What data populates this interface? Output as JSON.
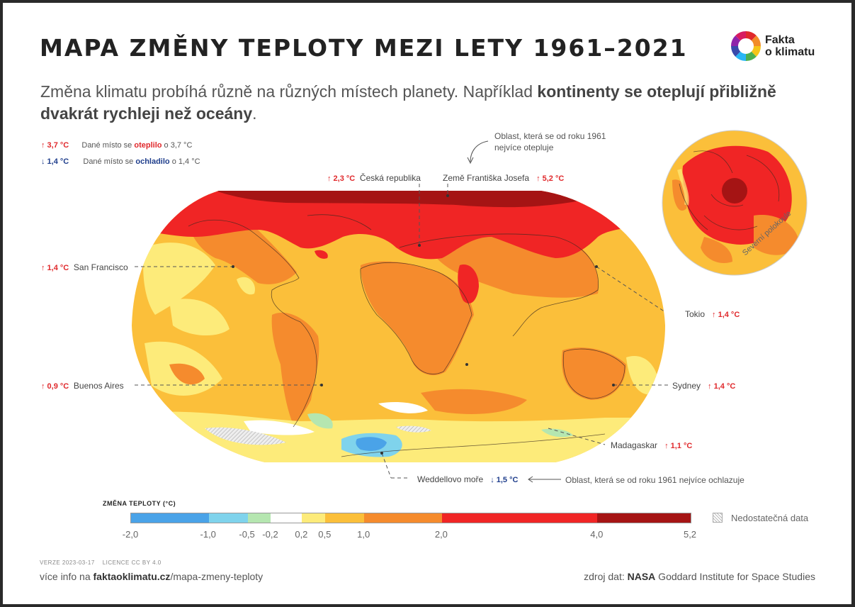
{
  "title": "MAPA ZMĚNY TEPLOTY MEZI LETY 1961–2021",
  "logo": {
    "line1": "Fakta",
    "line2": "o klimatu",
    "colors": [
      "#e0282b",
      "#f28c28",
      "#f5c518",
      "#4caf50",
      "#29b6f6",
      "#3949ab",
      "#8e24aa",
      "#d81b60"
    ]
  },
  "subtitle": {
    "part1": "Změna klimatu probíhá různě na různých místech planety. Například ",
    "bold": "kontinenty se oteplují přibližně dvakrát rychleji než oceány",
    "part2": "."
  },
  "legend": {
    "warm": {
      "value": "↑ 3,7 °C",
      "pre": "Dané místo se ",
      "word": "oteplilo",
      "post": " o 3,7 °C"
    },
    "cold": {
      "value": "↓ 1,4 °C",
      "pre": "Dané místo se ",
      "word": "ochladilo",
      "post": " o 1,4 °C"
    }
  },
  "places": {
    "czech": {
      "value": "↑ 2,3 °C",
      "name": "Česká republika"
    },
    "franz": {
      "name": "Země Františka Josefa",
      "value": "↑ 5,2 °C"
    },
    "sf": {
      "value": "↑ 1,4 °C",
      "name": "San Francisco"
    },
    "tokio": {
      "name": "Tokio",
      "value": "↑ 1,4 °C"
    },
    "ba": {
      "value": "↑ 0,9 °C",
      "name": "Buenos Aires"
    },
    "sydney": {
      "name": "Sydney",
      "value": "↑ 1,4 °C"
    },
    "madagaskar": {
      "name": "Madagaskar",
      "value": "↑ 1,1 °C"
    },
    "weddell": {
      "name": "Weddellovo moře",
      "value": "↓ 1,5 °C"
    }
  },
  "notes": {
    "warmest": "Oblast, která se od roku 1961\nnejvíce otepluje",
    "coldest": "Oblast, která se od roku 1961 nejvíce ochlazuje",
    "polar": "Severní polokoule"
  },
  "scale": {
    "title": "ZMĚNA TEPLOTY (°C)",
    "bins": [
      {
        "from": -2.0,
        "to": -1.0,
        "color": "#4aa3e8"
      },
      {
        "from": -1.0,
        "to": -0.5,
        "color": "#7fd3ec"
      },
      {
        "from": -0.5,
        "to": -0.2,
        "color": "#b5e6b0"
      },
      {
        "from": -0.2,
        "to": 0.2,
        "color": "#ffffff"
      },
      {
        "from": 0.2,
        "to": 0.5,
        "color": "#fdeb7a"
      },
      {
        "from": 0.5,
        "to": 1.0,
        "color": "#fbbf3a"
      },
      {
        "from": 1.0,
        "to": 2.0,
        "color": "#f58b2d"
      },
      {
        "from": 2.0,
        "to": 4.0,
        "color": "#f02525"
      },
      {
        "from": 4.0,
        "to": 5.2,
        "color": "#a51414"
      }
    ],
    "ticks": [
      "-2,0",
      "-1,0",
      "-0,5",
      "-0,2",
      "0,2",
      "0,5",
      "1,0",
      "2,0",
      "4,0",
      "5,2"
    ],
    "nodata": "Nedostatečná data"
  },
  "footer": {
    "meta": "VERZE 2023-03-17    LICENCE CC BY 4.0",
    "info_pre": "více info na ",
    "info_bold": "faktaoklimatu.cz",
    "info_post": "/mapa-zmeny-teploty",
    "source_pre": "zdroj dat: ",
    "source_bold": "NASA",
    "source_post": " Goddard Institute for Space Studies"
  }
}
